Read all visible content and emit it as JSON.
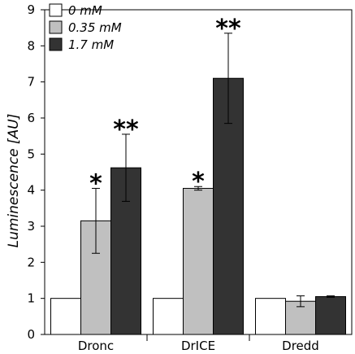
{
  "chart_data": {
    "type": "bar",
    "title": "",
    "xlabel": "",
    "ylabel": "Luminescence [AU]",
    "ylim": [
      0,
      9
    ],
    "yticks": [
      0,
      1,
      2,
      3,
      4,
      5,
      6,
      7,
      8,
      9
    ],
    "grid": false,
    "legend_position": "top-left",
    "categories": [
      "Dronc",
      "DrICE",
      "Dredd"
    ],
    "series": [
      {
        "name": "0 mM",
        "color": "#ffffff",
        "values": [
          1.0,
          1.0,
          1.0
        ],
        "errors": [
          0,
          0,
          0
        ]
      },
      {
        "name": "0.35 mM",
        "color": "#c0c0c0",
        "values": [
          3.15,
          4.05,
          0.92
        ],
        "errors": [
          0.9,
          0.05,
          0.15
        ]
      },
      {
        "name": "1.7 mM",
        "color": "#333333",
        "values": [
          4.62,
          7.1,
          1.05
        ],
        "errors": [
          0.93,
          1.25,
          0.02
        ]
      }
    ],
    "annotations": [
      {
        "category": "Dronc",
        "series": "0.35 mM",
        "text": "*"
      },
      {
        "category": "Dronc",
        "series": "1.7 mM",
        "text": "**"
      },
      {
        "category": "DrICE",
        "series": "0.35 mM",
        "text": "*"
      },
      {
        "category": "DrICE",
        "series": "1.7 mM",
        "text": "**"
      }
    ]
  }
}
